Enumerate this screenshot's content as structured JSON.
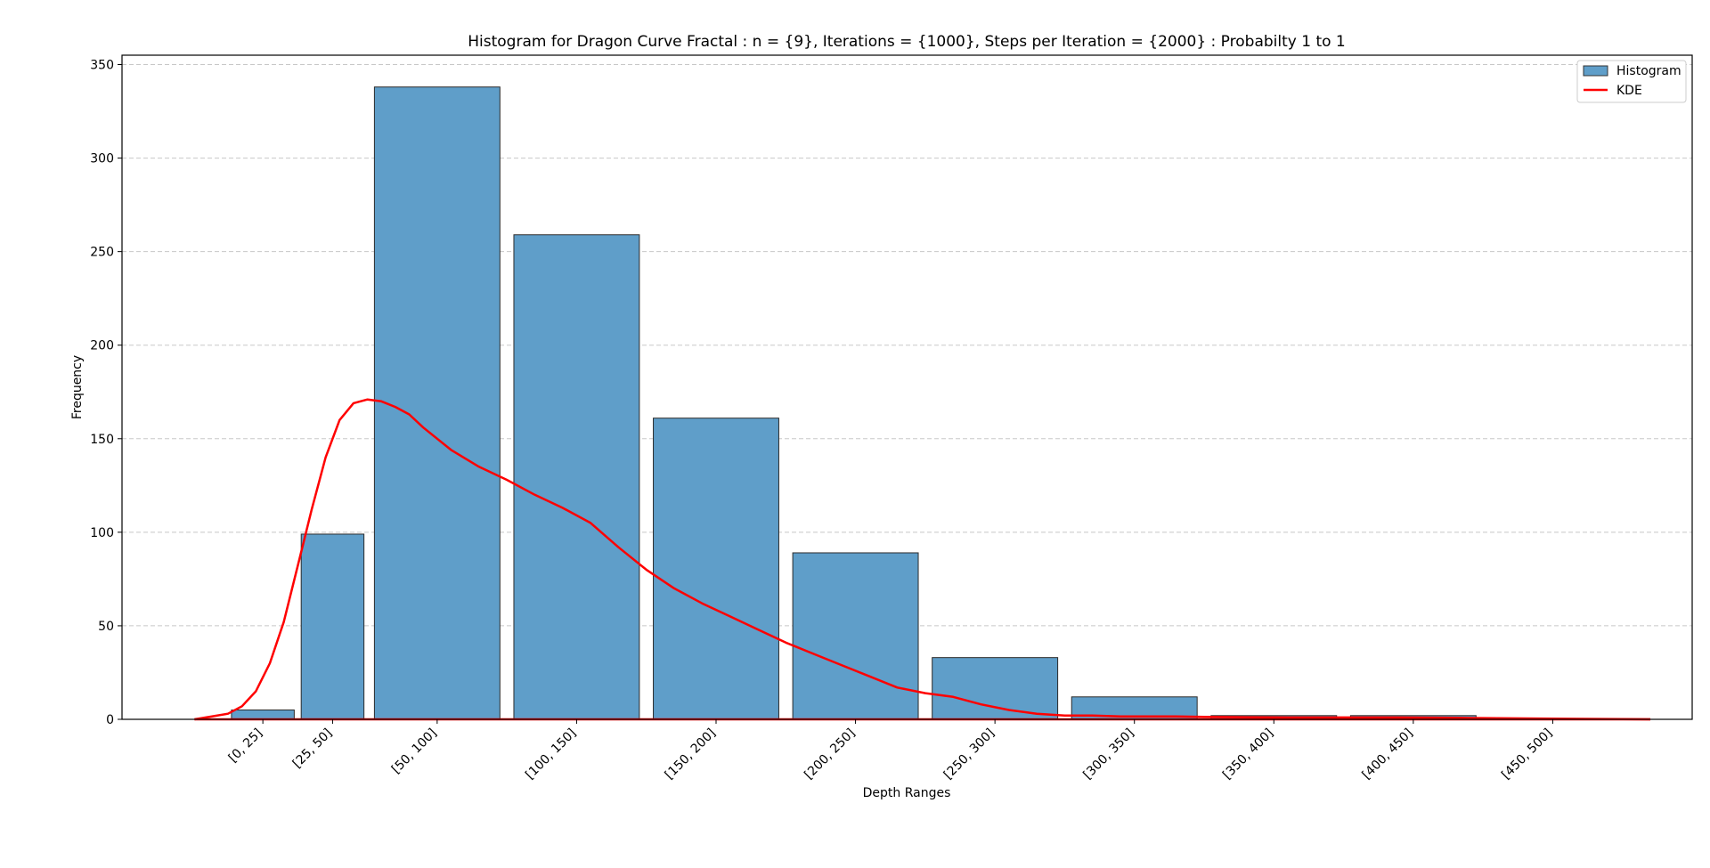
{
  "chart_data": {
    "type": "bar",
    "title": "Histogram for Dragon Curve Fractal : n = {9}, Iterations = {1000}, Steps per Iteration = {2000} : Probabilty 1 to 1",
    "xlabel": "Depth Ranges",
    "ylabel": "Frequency",
    "ylim": [
      0,
      355
    ],
    "xlim": [
      -38,
      525
    ],
    "y_ticks": [
      0,
      50,
      100,
      150,
      200,
      250,
      300,
      350
    ],
    "grid": "y-dashed",
    "legend_position": "top-right",
    "bar_color": "#5f9ec9",
    "kde_color": "#ff0000",
    "bins": [
      {
        "label": "[0, 25]",
        "start": 0,
        "end": 25,
        "value": 5
      },
      {
        "label": "[25, 50]",
        "start": 25,
        "end": 50,
        "value": 99
      },
      {
        "label": "[50, 100]",
        "start": 50,
        "end": 100,
        "value": 338
      },
      {
        "label": "[100, 150]",
        "start": 100,
        "end": 150,
        "value": 259
      },
      {
        "label": "[150, 200]",
        "start": 150,
        "end": 200,
        "value": 161
      },
      {
        "label": "[200, 250]",
        "start": 200,
        "end": 250,
        "value": 89
      },
      {
        "label": "[250, 300]",
        "start": 250,
        "end": 300,
        "value": 33
      },
      {
        "label": "[300, 350]",
        "start": 300,
        "end": 350,
        "value": 12
      },
      {
        "label": "[350, 400]",
        "start": 350,
        "end": 400,
        "value": 2
      },
      {
        "label": "[400, 450]",
        "start": 400,
        "end": 450,
        "value": 2
      },
      {
        "label": "[450, 500]",
        "start": 450,
        "end": 500,
        "value": 0
      }
    ],
    "series": [
      {
        "name": "Histogram",
        "type": "bar"
      },
      {
        "name": "KDE",
        "type": "line",
        "x": [
          -12,
          0,
          5,
          10,
          15,
          20,
          25,
          30,
          35,
          40,
          45,
          50,
          55,
          60,
          65,
          70,
          80,
          90,
          100,
          110,
          120,
          130,
          140,
          150,
          160,
          170,
          180,
          190,
          200,
          210,
          220,
          230,
          240,
          250,
          260,
          270,
          280,
          290,
          300,
          310,
          320,
          330,
          340,
          350,
          360,
          380,
          400,
          420,
          440,
          460,
          480,
          500,
          510
        ],
        "y": [
          0,
          3,
          7,
          15,
          30,
          52,
          82,
          112,
          140,
          160,
          169,
          171,
          170,
          167,
          163,
          156,
          144,
          135,
          128,
          120,
          113,
          105,
          92,
          80,
          70,
          62,
          55,
          48,
          41,
          35,
          29,
          23,
          17,
          14,
          12,
          8,
          5,
          3,
          2,
          2,
          1.5,
          1.5,
          1.5,
          1.3,
          1.2,
          1,
          1,
          1,
          0.8,
          0.5,
          0.3,
          0.1,
          0
        ]
      }
    ]
  }
}
